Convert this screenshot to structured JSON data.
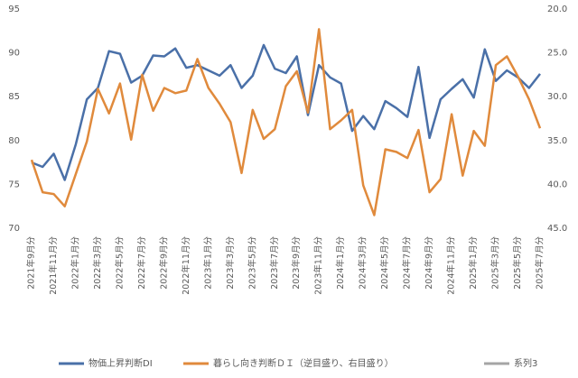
{
  "chart_data": {
    "type": "line",
    "categories": [
      "2021年9月分",
      null,
      "2021年11月分",
      null,
      "2022年1月分",
      null,
      "2022年3月分",
      null,
      "2022年5月分",
      null,
      "2022年7月分",
      null,
      "2022年9月分",
      null,
      "2022年11月分",
      null,
      "2023年1月分",
      null,
      "2023年3月分",
      null,
      "2023年5月分",
      null,
      "2023年7月分",
      null,
      "2023年9月分",
      null,
      "2023年11月分",
      null,
      "2024年1月分",
      null,
      "2024年3月分",
      null,
      "2024年5月分",
      null,
      "2024年7月分",
      null,
      "2024年9月分",
      null,
      "2024年11月分",
      null,
      "2025年1月分",
      null,
      "2025年3月分",
      null,
      "2025年5月分",
      null,
      "2025年7月分"
    ],
    "series": [
      {
        "name": "物価上昇判断DI",
        "color": "#4a70a8",
        "values": [
          77.5,
          77.0,
          78.5,
          75.5,
          79.6,
          84.7,
          86.0,
          90.2,
          89.9,
          86.6,
          87.4,
          89.7,
          89.6,
          90.5,
          88.3,
          88.6,
          88.0,
          87.4,
          88.6,
          86.0,
          87.4,
          90.9,
          88.2,
          87.7,
          89.6,
          82.9,
          88.6,
          87.2,
          86.5,
          81.1,
          82.8,
          81.3,
          84.5,
          83.7,
          82.7,
          88.4,
          80.3,
          84.7,
          85.9,
          87.0,
          84.9,
          90.4,
          86.8,
          88.0,
          87.2,
          86.0,
          87.6
        ]
      },
      {
        "name": "暮らし向き判断ＤＩ（逆目盛り、右目盛り）",
        "color": "#e08a3c",
        "axis": "y2",
        "values": [
          37.2,
          40.9,
          41.1,
          42.5,
          38.8,
          35.1,
          29.1,
          31.9,
          28.5,
          34.9,
          27.5,
          31.6,
          29.0,
          29.6,
          29.3,
          25.7,
          29.0,
          30.8,
          32.9,
          38.7,
          31.5,
          34.8,
          33.7,
          28.8,
          27.1,
          31.8,
          22.3,
          33.7,
          32.7,
          31.5,
          40.1,
          43.5,
          36.0,
          36.3,
          37.0,
          33.8,
          40.9,
          39.4,
          32.0,
          39.0,
          33.9,
          35.6,
          26.4,
          25.4,
          27.7,
          30.3,
          33.6
        ]
      },
      {
        "name": "系列3",
        "color": "#a5a5a5",
        "values": [
          null,
          null,
          null,
          null,
          null,
          null,
          null,
          null,
          null,
          null,
          null,
          null,
          null,
          null,
          null,
          null,
          null,
          null,
          null,
          null,
          null,
          null,
          null,
          null,
          null,
          null,
          null,
          null,
          null,
          null,
          null,
          null,
          null,
          null,
          null,
          null,
          null,
          null,
          null,
          null,
          null,
          null,
          null,
          null,
          null,
          null,
          null
        ]
      }
    ],
    "ylim": [
      70,
      95
    ],
    "yticks": [
      70,
      75,
      80,
      85,
      90,
      95
    ],
    "y2lim": [
      20,
      45
    ],
    "y2_inverted": true,
    "y2ticks": [
      {
        "value": 20,
        "label": "20.0"
      },
      {
        "value": 25,
        "label": "25.0"
      },
      {
        "value": 30,
        "label": "30.0"
      },
      {
        "value": 35,
        "label": "35.0"
      },
      {
        "value": 40,
        "label": "40.0"
      },
      {
        "value": 45,
        "label": "45.0"
      }
    ],
    "grid": false,
    "legend": "bottom"
  }
}
